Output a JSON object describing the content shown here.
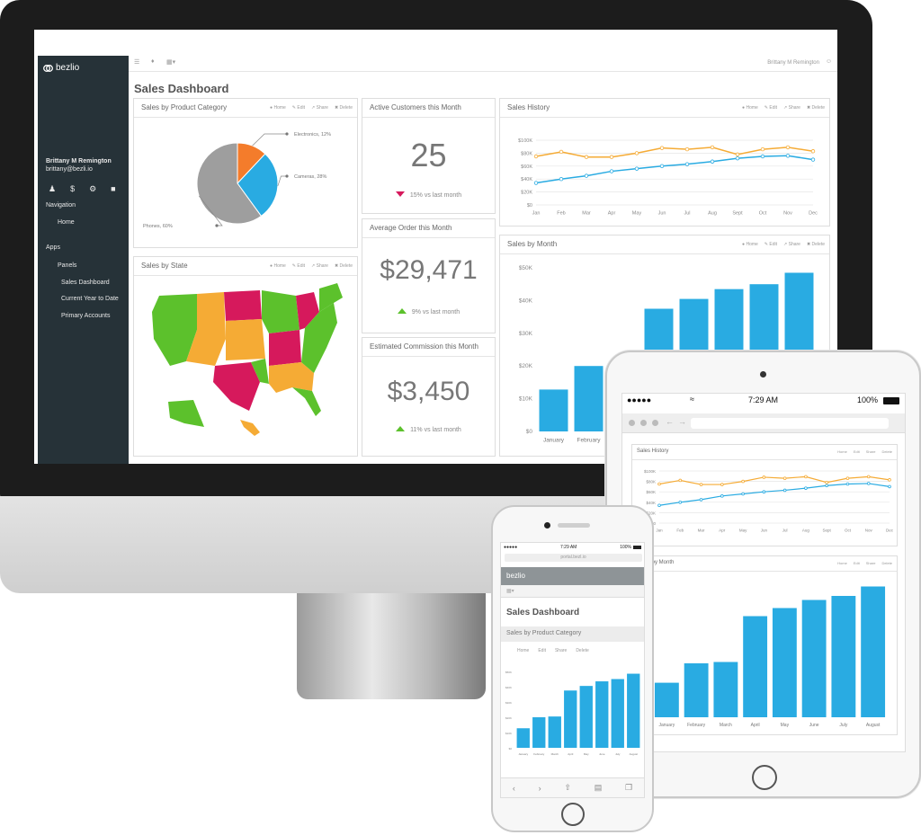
{
  "app": {
    "brand": "bezlio",
    "page_title": "Sales Dashboard"
  },
  "topbar": {
    "user": "Brittany M Remington"
  },
  "sidebar": {
    "user_name": "Brittany M Remington",
    "user_email": "brittany@bezli.io",
    "navigation_heading": "Navigation",
    "home": "Home",
    "apps_heading": "Apps",
    "panels": "Panels",
    "items": [
      "Sales Dashboard",
      "Current Year to Date",
      "Primary Accounts"
    ]
  },
  "panel_tools": {
    "home": "Home",
    "edit": "Edit",
    "share": "Share",
    "delete": "Delete"
  },
  "panels": {
    "category": "Sales by Product Category",
    "state": "Sales by State",
    "history": "Sales History",
    "month": "Sales by Month"
  },
  "kpis": [
    {
      "title": "Active Customers this Month",
      "value": "25",
      "delta": "15% vs last month",
      "trend": "down"
    },
    {
      "title": "Average Order this Month",
      "value": "$29,471",
      "delta": "9% vs last month",
      "trend": "up"
    },
    {
      "title": "Estimated Commission this Month",
      "value": "$3,450",
      "delta": "11% vs last month",
      "trend": "up"
    }
  ],
  "colors": {
    "blue": "#29abe2",
    "orange": "#f5ab35",
    "green": "#5cc12c",
    "red": "#d6195c",
    "gray": "#9e9e9e",
    "sidebar": "#263238"
  },
  "chart_data": [
    {
      "type": "pie",
      "title": "Sales by Product Category",
      "labels": [
        "Electronics, 12%",
        "Cameras, 28%",
        "Phones, 60%"
      ],
      "values": [
        12,
        28,
        60
      ],
      "colors": [
        "#f47c2b",
        "#29abe2",
        "#9e9e9e"
      ]
    },
    {
      "type": "line",
      "title": "Sales History",
      "categories": [
        "Jan",
        "Feb",
        "Mar",
        "Apr",
        "May",
        "Jun",
        "Jul",
        "Aug",
        "Sept",
        "Oct",
        "Nov",
        "Dec"
      ],
      "yticks": [
        "$100K",
        "$80K",
        "$60K",
        "$40K",
        "$20K",
        "$0"
      ],
      "ylim": [
        0,
        100
      ],
      "series": [
        {
          "values": [
            75,
            82,
            74,
            74,
            80,
            88,
            86,
            89,
            78,
            86,
            89,
            83
          ],
          "color": "#f5ab35"
        },
        {
          "values": [
            34,
            40,
            45,
            52,
            56,
            60,
            63,
            67,
            72,
            75,
            76,
            70
          ],
          "color": "#29abe2"
        }
      ]
    },
    {
      "type": "bar",
      "title": "Sales by Month",
      "categories": [
        "January",
        "February",
        "March",
        "April",
        "May",
        "June",
        "July",
        "August"
      ],
      "values": [
        12.8,
        20,
        20.5,
        37.5,
        40.5,
        43.5,
        45,
        48.5
      ],
      "yticks": [
        "$50K",
        "$40K",
        "$30K",
        "$20K",
        "$10K",
        "$0"
      ],
      "ylim": [
        0,
        50
      ],
      "color": "#29abe2"
    }
  ],
  "tablet": {
    "carrier": "●●●●●",
    "time": "7:29 AM",
    "battery": "100%",
    "history_title": "Sales History",
    "month_title": "Sales by Month",
    "history_ticks": [
      "$100K",
      "$80K"
    ],
    "month_labels": [
      "January",
      "February",
      "March",
      "April",
      "May",
      "June",
      "July",
      "August"
    ]
  },
  "phone": {
    "carrier": "●●●●●",
    "time": "7:29 AM",
    "battery": "100%",
    "url": "portal.bezl.io",
    "brand": "bezlio",
    "page_title": "Sales Dashboard",
    "panel_title": "Sales by Product Category",
    "tools": [
      "Home",
      "Edit",
      "Share",
      "Delete"
    ]
  }
}
